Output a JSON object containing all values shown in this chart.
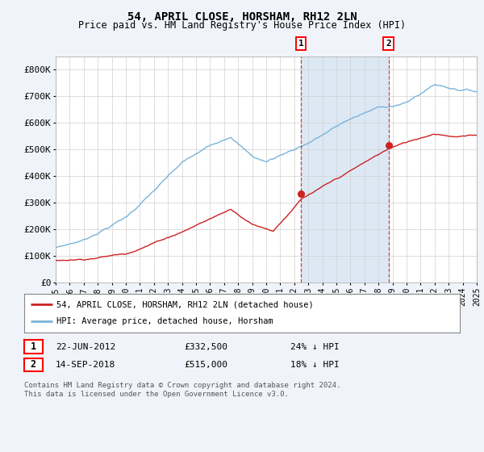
{
  "title": "54, APRIL CLOSE, HORSHAM, RH12 2LN",
  "subtitle": "Price paid vs. HM Land Registry's House Price Index (HPI)",
  "ylim": [
    0,
    850000
  ],
  "yticks": [
    0,
    100000,
    200000,
    300000,
    400000,
    500000,
    600000,
    700000,
    800000
  ],
  "ytick_labels": [
    "£0",
    "£100K",
    "£200K",
    "£300K",
    "£400K",
    "£500K",
    "£600K",
    "£700K",
    "£800K"
  ],
  "hpi_color": "#7ab4d8",
  "price_color": "#cc2222",
  "sale1_date": 2012.47,
  "sale1_price": 332500,
  "sale1_label": "22-JUN-2012",
  "sale1_amount": "£332,500",
  "sale1_note": "24% ↓ HPI",
  "sale2_date": 2018.71,
  "sale2_price": 515000,
  "sale2_label": "14-SEP-2018",
  "sale2_amount": "£515,000",
  "sale2_note": "18% ↓ HPI",
  "legend_line1": "54, APRIL CLOSE, HORSHAM, RH12 2LN (detached house)",
  "legend_line2": "HPI: Average price, detached house, Horsham",
  "footer": "Contains HM Land Registry data © Crown copyright and database right 2024.\nThis data is licensed under the Open Government Licence v3.0.",
  "background_color": "#f0f4fa",
  "plot_bg": "#ffffff",
  "shade_color": "#dce9f5",
  "xmin": 1995,
  "xmax": 2025
}
